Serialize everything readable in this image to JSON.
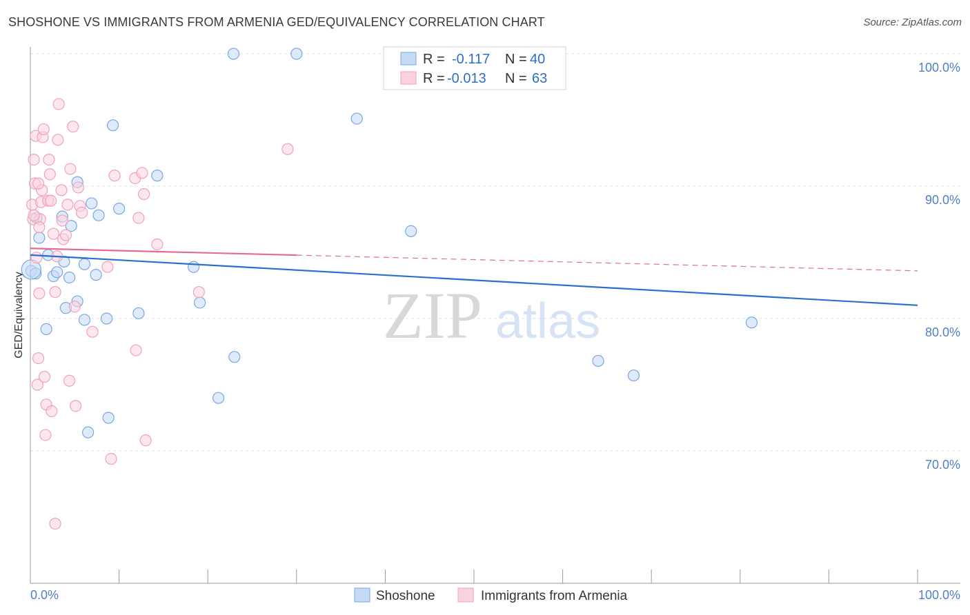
{
  "header": {
    "title": "SHOSHONE VS IMMIGRANTS FROM ARMENIA GED/EQUIVALENCY CORRELATION CHART",
    "source": "Source: ZipAtlas.com"
  },
  "watermark": {
    "zip": "ZIP",
    "atlas": "atlas"
  },
  "chart_data": {
    "type": "scatter",
    "title": "SHOSHONE VS IMMIGRANTS FROM ARMENIA GED/EQUIVALENCY CORRELATION CHART",
    "xlabel": "",
    "ylabel": "GED/Equivalency",
    "xlim": [
      0,
      100
    ],
    "ylim": [
      60,
      101.5
    ],
    "x_tick_labels": {
      "left": "0.0%",
      "right": "100.0%"
    },
    "y_ticks": [
      {
        "value": 100,
        "label": "100.0%"
      },
      {
        "value": 90,
        "label": "90.0%"
      },
      {
        "value": 80,
        "label": "80.0%"
      },
      {
        "value": 70,
        "label": "70.0%"
      }
    ],
    "grid": true,
    "legend": {
      "position": "top-center",
      "entries": [
        {
          "r_label": "R =",
          "r_value": "-0.117",
          "n_label": "N =",
          "n_value": "40"
        },
        {
          "r_label": "R =",
          "r_value": "-0.013",
          "n_label": "N =",
          "n_value": "63"
        }
      ]
    },
    "series": [
      {
        "name": "Shoshone",
        "color": "#7aa7e0",
        "fill": "#c5dbf5",
        "trend_color": "#2a6fcc",
        "trend": {
          "x0": 0,
          "y0": 84.8,
          "x1": 100,
          "y1": 81.0,
          "dashed_from": null
        },
        "points": [
          [
            0.1,
            83.6
          ],
          [
            0.6,
            83.4
          ],
          [
            0.7,
            87.6
          ],
          [
            1.0,
            86.1
          ],
          [
            1.8,
            79.2
          ],
          [
            2.0,
            84.8
          ],
          [
            2.6,
            83.2
          ],
          [
            3.0,
            83.5
          ],
          [
            3.8,
            84.3
          ],
          [
            3.6,
            87.7
          ],
          [
            4.0,
            80.8
          ],
          [
            4.4,
            83.1
          ],
          [
            4.6,
            87.0
          ],
          [
            5.3,
            90.3
          ],
          [
            5.3,
            81.3
          ],
          [
            6.1,
            84.1
          ],
          [
            6.1,
            79.9
          ],
          [
            6.5,
            71.4
          ],
          [
            6.9,
            88.7
          ],
          [
            7.4,
            83.3
          ],
          [
            7.7,
            87.8
          ],
          [
            8.6,
            80.0
          ],
          [
            8.8,
            72.5
          ],
          [
            9.3,
            94.6
          ],
          [
            10.0,
            88.3
          ],
          [
            12.2,
            80.4
          ],
          [
            14.3,
            90.8
          ],
          [
            18.4,
            83.9
          ],
          [
            19.1,
            81.2
          ],
          [
            21.2,
            74.0
          ],
          [
            22.9,
            100.0
          ],
          [
            23.0,
            77.1
          ],
          [
            30.0,
            100.0
          ],
          [
            36.8,
            95.1
          ],
          [
            42.9,
            86.6
          ],
          [
            64.0,
            76.8
          ],
          [
            68.0,
            75.7
          ],
          [
            81.3,
            79.7
          ]
        ],
        "big_points": [
          [
            0.1,
            83.7
          ]
        ]
      },
      {
        "name": "Immigrants from Armenia",
        "color": "#f1a0bd",
        "fill": "#f9d3e1",
        "trend_color": "#e36b96",
        "trend": {
          "x0": 0,
          "y0": 85.3,
          "x1": 100,
          "y1": 83.6,
          "dashed_from": 30
        },
        "points": [
          [
            0.2,
            88.6
          ],
          [
            0.3,
            87.5
          ],
          [
            0.4,
            92.0
          ],
          [
            0.5,
            90.2
          ],
          [
            0.6,
            93.8
          ],
          [
            0.7,
            84.6
          ],
          [
            0.8,
            75.0
          ],
          [
            0.9,
            77.0
          ],
          [
            1.0,
            81.9
          ],
          [
            1.1,
            87.5
          ],
          [
            1.2,
            88.8
          ],
          [
            1.3,
            89.7
          ],
          [
            1.4,
            93.7
          ],
          [
            1.5,
            94.3
          ],
          [
            1.6,
            75.6
          ],
          [
            1.7,
            71.2
          ],
          [
            1.8,
            73.5
          ],
          [
            2.0,
            88.9
          ],
          [
            2.1,
            92.0
          ],
          [
            2.2,
            90.9
          ],
          [
            2.3,
            88.9
          ],
          [
            2.4,
            73.0
          ],
          [
            2.6,
            86.4
          ],
          [
            2.8,
            82.0
          ],
          [
            3.0,
            84.7
          ],
          [
            3.1,
            93.5
          ],
          [
            3.2,
            96.2
          ],
          [
            3.5,
            89.7
          ],
          [
            3.6,
            87.4
          ],
          [
            3.7,
            86.0
          ],
          [
            4.0,
            86.3
          ],
          [
            4.2,
            88.6
          ],
          [
            4.4,
            75.3
          ],
          [
            4.5,
            91.3
          ],
          [
            4.8,
            94.5
          ],
          [
            5.0,
            80.9
          ],
          [
            5.1,
            73.4
          ],
          [
            5.4,
            89.9
          ],
          [
            5.6,
            88.5
          ],
          [
            5.8,
            88.0
          ],
          [
            7.0,
            79.0
          ],
          [
            8.7,
            83.9
          ],
          [
            9.1,
            69.4
          ],
          [
            9.5,
            90.8
          ],
          [
            11.8,
            90.6
          ],
          [
            11.9,
            77.6
          ],
          [
            12.2,
            87.6
          ],
          [
            12.6,
            91.0
          ],
          [
            12.8,
            89.4
          ],
          [
            13.0,
            70.8
          ],
          [
            14.3,
            85.6
          ],
          [
            19.0,
            82.0
          ],
          [
            29.0,
            92.8
          ],
          [
            2.8,
            64.5
          ],
          [
            0.9,
            90.2
          ],
          [
            0.4,
            87.8
          ],
          [
            1.0,
            86.9
          ]
        ]
      }
    ]
  },
  "bottom_legend": [
    {
      "label": "Shoshone"
    },
    {
      "label": "Immigrants from Armenia"
    }
  ]
}
